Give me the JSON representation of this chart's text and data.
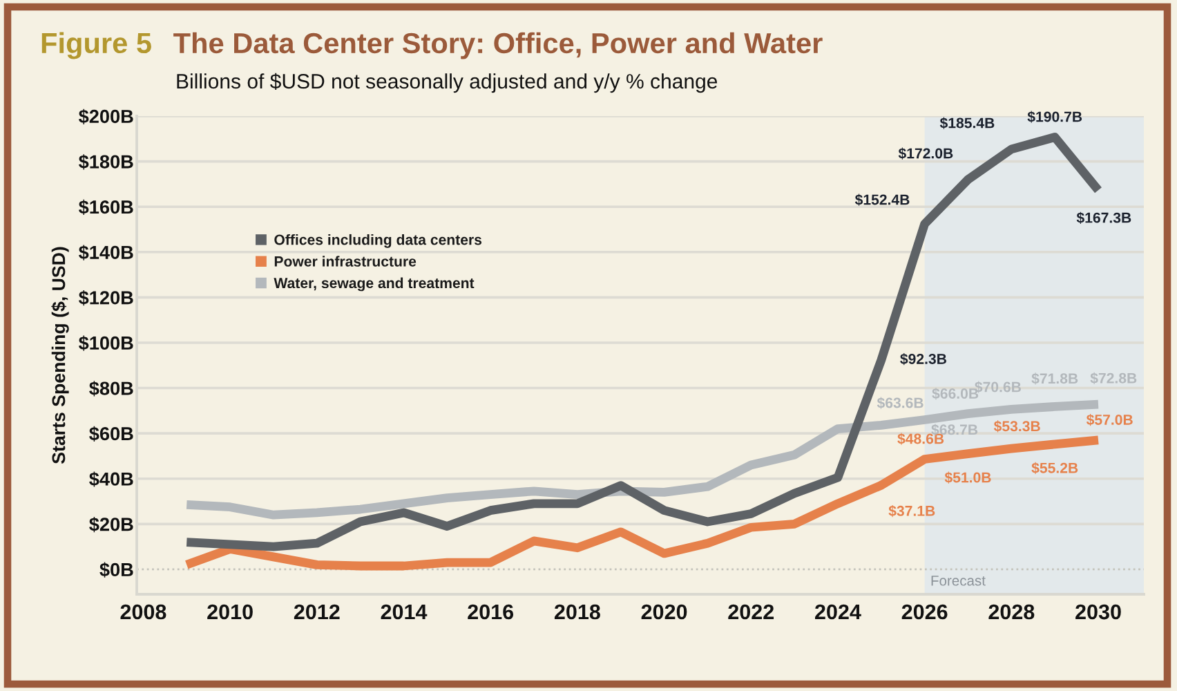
{
  "chart_data": {
    "type": "line",
    "annotations": [
      "Figure 5"
    ],
    "title": "The Data Center Story: Office, Power and Water",
    "subtitle": "Billions of $USD not seasonally adjusted and y/y % change",
    "ylabel": "Starts Spending ($, USD)",
    "x": [
      2009,
      2010,
      2011,
      2012,
      2013,
      2014,
      2015,
      2016,
      2017,
      2018,
      2019,
      2020,
      2021,
      2022,
      2023,
      2024,
      2025,
      2026,
      2027,
      2028,
      2029,
      2030
    ],
    "series": [
      {
        "name": "Offices including data centers",
        "color": "#5e6266",
        "values": [
          12,
          11,
          10,
          11.5,
          21,
          25,
          19,
          26,
          29,
          29,
          37,
          26,
          21,
          24.5,
          33.5,
          40.5,
          92.3,
          152.4,
          172.0,
          185.4,
          190.7,
          167.3
        ],
        "value_labels": [
          null,
          null,
          null,
          null,
          null,
          null,
          null,
          null,
          null,
          null,
          null,
          null,
          null,
          null,
          null,
          null,
          "$92.3B",
          "$152.4B",
          "$172.0B",
          "$185.4B",
          "$190.7B",
          "$167.3B"
        ]
      },
      {
        "name": "Power infrastructure",
        "color": "#e6814b",
        "values": [
          2,
          9,
          5.5,
          2,
          1.5,
          1.5,
          3,
          3,
          12.5,
          9.5,
          16.5,
          7,
          11.5,
          18.5,
          20,
          29,
          37.1,
          48.6,
          51.0,
          53.3,
          55.2,
          57.0
        ],
        "value_labels": [
          null,
          null,
          null,
          null,
          null,
          null,
          null,
          null,
          null,
          null,
          null,
          null,
          null,
          null,
          null,
          null,
          "$37.1B",
          "$48.6B",
          "$51.0B",
          "$53.3B",
          "$55.2B",
          "$57.0B"
        ]
      },
      {
        "name": "Water, sewage and treatment",
        "color": "#b3b8bc",
        "values": [
          28.5,
          27.5,
          24,
          25,
          26.5,
          29,
          31.5,
          33,
          34.5,
          33,
          34.5,
          34,
          36.5,
          46,
          50.5,
          62,
          63.6,
          66.0,
          68.7,
          70.6,
          71.8,
          72.8
        ],
        "value_labels": [
          null,
          null,
          null,
          null,
          null,
          null,
          null,
          null,
          null,
          null,
          null,
          null,
          null,
          null,
          null,
          null,
          "$63.6B",
          "$66.0B",
          "$68.7B",
          "$70.6B",
          "$71.8B",
          "$72.8B"
        ]
      }
    ],
    "xlim": [
      2007.85,
      2031.05
    ],
    "xticks": [
      2008,
      2010,
      2012,
      2014,
      2016,
      2018,
      2020,
      2022,
      2024,
      2026,
      2028,
      2030
    ],
    "ylim": [
      -11,
      200
    ],
    "yticks": [
      {
        "value": 0,
        "label": "$0B"
      },
      {
        "value": 20,
        "label": "$20B"
      },
      {
        "value": 40,
        "label": "$40B"
      },
      {
        "value": 60,
        "label": "$60B"
      },
      {
        "value": 80,
        "label": "$80B"
      },
      {
        "value": 100,
        "label": "$100B"
      },
      {
        "value": 120,
        "label": "$120B"
      },
      {
        "value": 140,
        "label": "$140B"
      },
      {
        "value": 160,
        "label": "$160B"
      },
      {
        "value": 180,
        "label": "$180B"
      },
      {
        "value": 200,
        "label": "$200B"
      }
    ],
    "grid": "y",
    "legend": "top left",
    "bands": [
      {
        "axis": "x",
        "from": 2026,
        "to": 2031.05,
        "label": "Forecast",
        "color": "#e3e9eb"
      }
    ],
    "ref_lines": [
      {
        "axis": "y",
        "value": 0,
        "line_style": "dotted",
        "color": "#c4c3bb"
      }
    ]
  }
}
